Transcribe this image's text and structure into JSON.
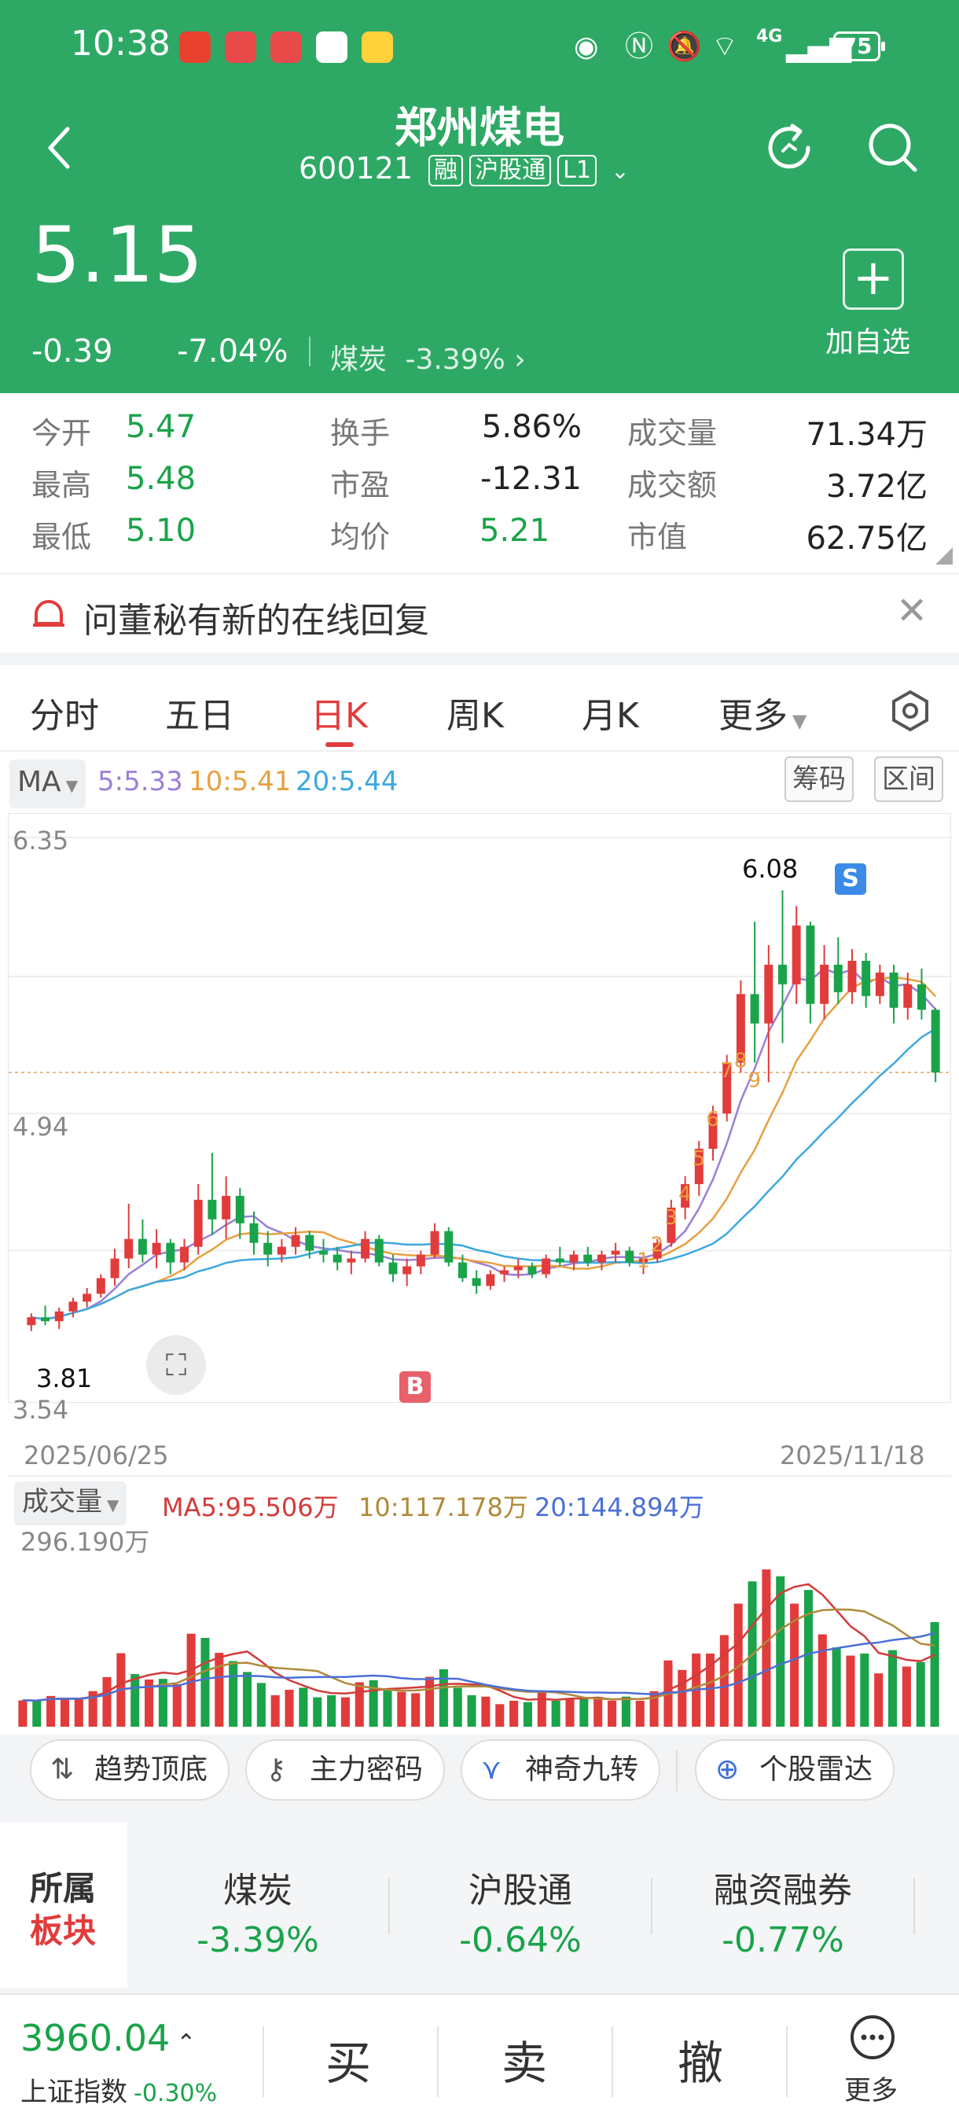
{
  "status_bar": {
    "time": "10:38",
    "network": "4G",
    "battery": "75"
  },
  "header": {
    "stock_name": "郑州煤电",
    "stock_code": "600121",
    "tags": [
      "融",
      "沪股通",
      "L1"
    ]
  },
  "price": {
    "last": "5.15",
    "change": "-0.39",
    "change_pct": "-7.04%",
    "sector_name": "煤炭",
    "sector_pct": "-3.39%",
    "add_watch_label": "加自选"
  },
  "quote": {
    "rows": [
      [
        {
          "label": "今开",
          "value": "5.47"
        },
        {
          "label": "换手",
          "value": "5.86%"
        },
        {
          "label": "成交量",
          "value": "71.34万"
        }
      ],
      [
        {
          "label": "最高",
          "value": "5.48"
        },
        {
          "label": "市盈",
          "value": "-12.31"
        },
        {
          "label": "成交额",
          "value": "3.72亿"
        }
      ],
      [
        {
          "label": "最低",
          "value": "5.10"
        },
        {
          "label": "均价",
          "value": "5.21"
        },
        {
          "label": "市值",
          "value": "62.75亿"
        }
      ]
    ]
  },
  "notice": {
    "text": "问董秘有新的在线回复"
  },
  "tabs": [
    "分时",
    "五日",
    "日K",
    "周K",
    "月K",
    "更多"
  ],
  "active_tab": "日K",
  "ma_bar": {
    "selector": "MA",
    "ma5": "5:5.33",
    "ma10": "10:5.41",
    "ma20": "20:5.44",
    "btn_chips": "筹码",
    "btn_range": "区间"
  },
  "kline": {
    "y_top": "6.35",
    "y_mid": "4.94",
    "y_bottom": "3.54",
    "high_label": "6.08",
    "low_label": "3.81",
    "date_start": "2025/06/25",
    "date_end": "2025/11/18",
    "buy_marker": "B",
    "sell_marker": "S",
    "seq": [
      "1",
      "2",
      "3",
      "4",
      "5",
      "6",
      "7",
      "8",
      "9"
    ]
  },
  "volume": {
    "selector": "成交量",
    "ma5": "MA5:95.506万",
    "ma10": "10:117.178万",
    "ma20": "20:144.894万",
    "max_label": "296.190万"
  },
  "tools": [
    "趋势顶底",
    "主力密码",
    "神奇九转",
    "个股雷达"
  ],
  "sectors": {
    "title_top": "所属",
    "title_bottom": "板块",
    "items": [
      {
        "name": "煤炭",
        "pct": "-3.39%"
      },
      {
        "name": "沪股通",
        "pct": "-0.64%"
      },
      {
        "name": "融资融券",
        "pct": "-0.77%"
      }
    ]
  },
  "bottom_bar": {
    "index_value": "3960.04",
    "index_name": "上证指数",
    "index_pct": "-0.30%",
    "buy": "买",
    "sell": "卖",
    "cancel": "撤",
    "more": "更多"
  },
  "colors": {
    "header_green": "#2ea965",
    "up_red": "#e23b3b",
    "down_green": "#1aa34a",
    "ma5": "#9b7fd6",
    "ma10": "#e8a040",
    "ma20": "#3ca8e0"
  },
  "chart_data": {
    "type": "candlestick",
    "y_range": [
      3.54,
      6.35
    ],
    "dates": [
      "2025/06/25",
      "2025/11/18"
    ],
    "candles": [
      [
        3.86,
        3.92,
        3.83,
        3.9
      ],
      [
        3.9,
        3.96,
        3.86,
        3.88
      ],
      [
        3.88,
        3.95,
        3.84,
        3.93
      ],
      [
        3.93,
        4.0,
        3.9,
        3.98
      ],
      [
        3.98,
        4.05,
        3.95,
        4.02
      ],
      [
        4.02,
        4.12,
        4.0,
        4.1
      ],
      [
        4.1,
        4.25,
        4.06,
        4.2
      ],
      [
        4.2,
        4.48,
        4.15,
        4.3
      ],
      [
        4.3,
        4.4,
        4.18,
        4.22
      ],
      [
        4.22,
        4.35,
        4.15,
        4.28
      ],
      [
        4.28,
        4.3,
        4.12,
        4.18
      ],
      [
        4.18,
        4.3,
        4.14,
        4.26
      ],
      [
        4.26,
        4.58,
        4.22,
        4.5
      ],
      [
        4.5,
        4.74,
        4.32,
        4.4
      ],
      [
        4.4,
        4.62,
        4.3,
        4.52
      ],
      [
        4.52,
        4.56,
        4.3,
        4.38
      ],
      [
        4.38,
        4.44,
        4.22,
        4.28
      ],
      [
        4.28,
        4.34,
        4.16,
        4.22
      ],
      [
        4.22,
        4.3,
        4.18,
        4.26
      ],
      [
        4.26,
        4.36,
        4.22,
        4.32
      ],
      [
        4.32,
        4.34,
        4.2,
        4.24
      ],
      [
        4.24,
        4.3,
        4.18,
        4.22
      ],
      [
        4.22,
        4.26,
        4.14,
        4.18
      ],
      [
        4.18,
        4.24,
        4.12,
        4.2
      ],
      [
        4.2,
        4.34,
        4.18,
        4.3
      ],
      [
        4.3,
        4.32,
        4.16,
        4.18
      ],
      [
        4.18,
        4.22,
        4.08,
        4.12
      ],
      [
        4.12,
        4.2,
        4.06,
        4.16
      ],
      [
        4.16,
        4.24,
        4.12,
        4.22
      ],
      [
        4.22,
        4.38,
        4.2,
        4.34
      ],
      [
        4.34,
        4.36,
        4.16,
        4.18
      ],
      [
        4.18,
        4.22,
        4.08,
        4.1
      ],
      [
        4.1,
        4.14,
        4.02,
        4.06
      ],
      [
        4.06,
        4.14,
        4.04,
        4.12
      ],
      [
        4.12,
        4.16,
        4.08,
        4.14
      ],
      [
        4.14,
        4.2,
        4.1,
        4.16
      ],
      [
        4.16,
        4.18,
        4.1,
        4.12
      ],
      [
        4.12,
        4.22,
        4.1,
        4.2
      ],
      [
        4.2,
        4.26,
        4.16,
        4.18
      ],
      [
        4.18,
        4.24,
        4.14,
        4.22
      ],
      [
        4.22,
        4.26,
        4.16,
        4.18
      ],
      [
        4.18,
        4.24,
        4.14,
        4.22
      ],
      [
        4.22,
        4.28,
        4.18,
        4.24
      ],
      [
        4.24,
        4.26,
        4.16,
        4.18
      ],
      [
        4.18,
        4.22,
        4.12,
        4.2
      ],
      [
        4.2,
        4.3,
        4.18,
        4.28
      ],
      [
        4.28,
        4.5,
        4.26,
        4.46
      ],
      [
        4.46,
        4.62,
        4.4,
        4.58
      ],
      [
        4.58,
        4.8,
        4.52,
        4.76
      ],
      [
        4.76,
        4.98,
        4.7,
        4.94
      ],
      [
        4.94,
        5.24,
        4.9,
        5.2
      ],
      [
        5.2,
        5.62,
        5.15,
        5.55
      ],
      [
        5.55,
        5.92,
        5.2,
        5.4
      ],
      [
        5.4,
        5.8,
        5.1,
        5.7
      ],
      [
        5.7,
        6.08,
        5.3,
        5.6
      ],
      [
        5.6,
        6.0,
        5.5,
        5.9
      ],
      [
        5.9,
        5.92,
        5.4,
        5.5
      ],
      [
        5.5,
        5.8,
        5.42,
        5.7
      ],
      [
        5.7,
        5.84,
        5.5,
        5.56
      ],
      [
        5.56,
        5.78,
        5.5,
        5.72
      ],
      [
        5.72,
        5.76,
        5.48,
        5.54
      ],
      [
        5.54,
        5.7,
        5.5,
        5.66
      ],
      [
        5.66,
        5.7,
        5.4,
        5.48
      ],
      [
        5.48,
        5.66,
        5.42,
        5.6
      ],
      [
        5.6,
        5.68,
        5.42,
        5.47
      ],
      [
        5.47,
        5.48,
        5.1,
        5.15
      ]
    ],
    "ma5_last": 5.33,
    "ma10_last": 5.41,
    "ma20_last": 5.44
  }
}
